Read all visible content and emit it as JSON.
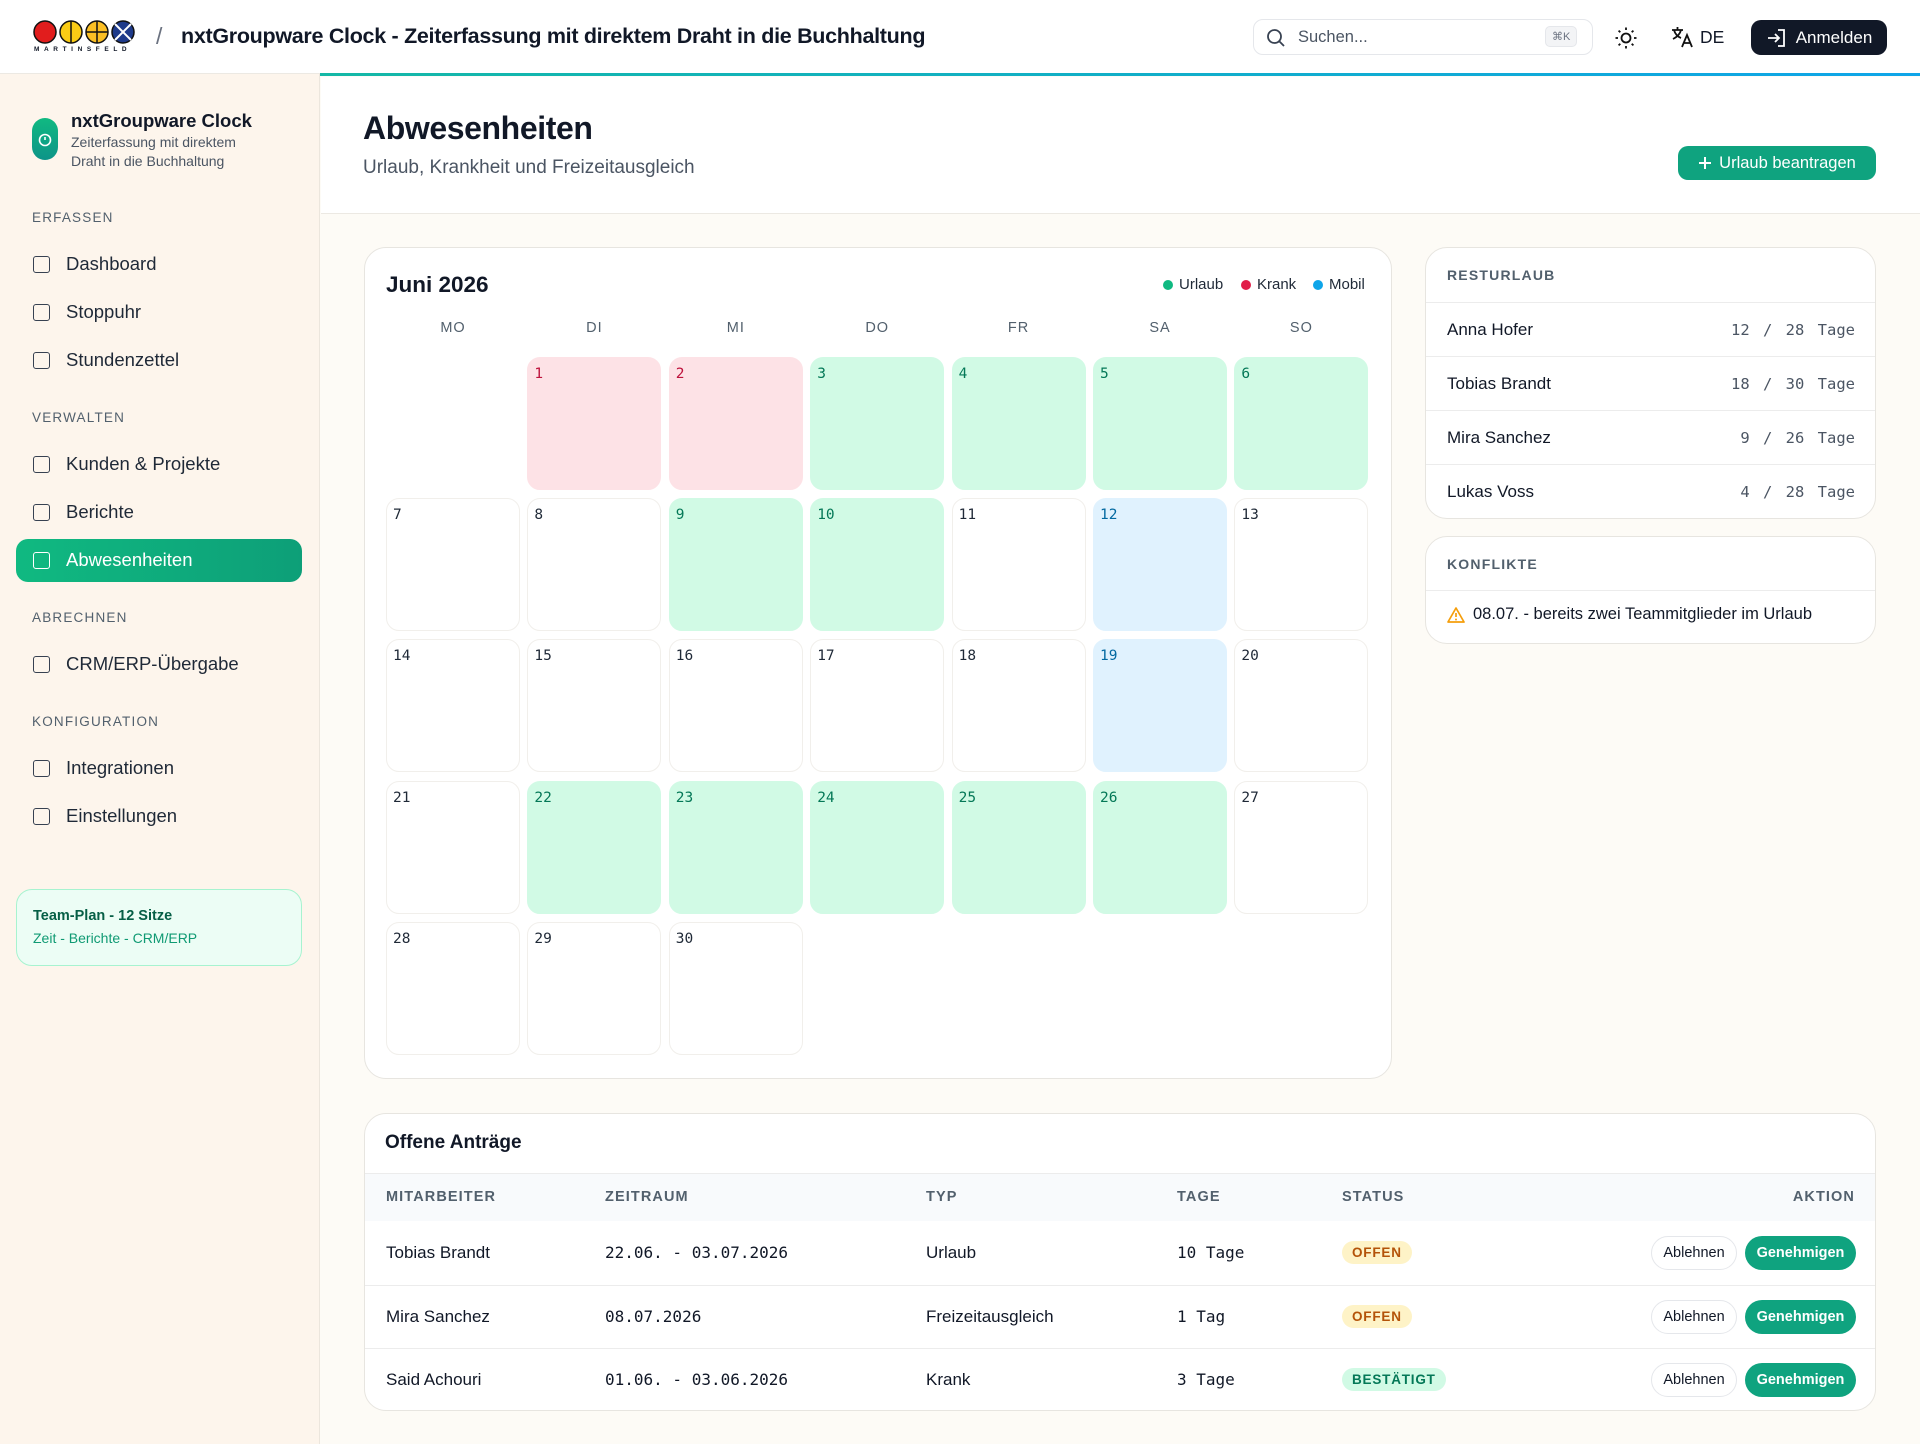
{
  "header": {
    "logo_text": "MARTINSFELD",
    "separator": "/",
    "title": "nxtGroupware Clock - Zeiterfassung mit direktem Draht in die Buchhaltung",
    "search_placeholder": "Suchen...",
    "search_shortcut": "⌘K",
    "language": "DE",
    "login": "Anmelden"
  },
  "sidebar": {
    "app_name": "nxtGroupware Clock",
    "app_subtitle": "Zeiterfassung mit direktem Draht in die Buchhaltung",
    "sections": [
      {
        "title": "ERFASSEN",
        "items": [
          {
            "label": "Dashboard"
          },
          {
            "label": "Stoppuhr"
          },
          {
            "label": "Stundenzettel"
          }
        ]
      },
      {
        "title": "VERWALTEN",
        "items": [
          {
            "label": "Kunden & Projekte"
          },
          {
            "label": "Berichte"
          },
          {
            "label": "Abwesenheiten",
            "active": true
          }
        ]
      },
      {
        "title": "ABRECHNEN",
        "items": [
          {
            "label": "CRM/ERP-Übergabe"
          }
        ]
      },
      {
        "title": "KONFIGURATION",
        "items": [
          {
            "label": "Integrationen"
          },
          {
            "label": "Einstellungen"
          }
        ]
      }
    ],
    "plan": {
      "title": "Team-Plan - 12 Sitze",
      "features": "Zeit - Berichte - CRM/ERP"
    }
  },
  "page": {
    "title": "Abwesenheiten",
    "subtitle": "Urlaub, Krankheit und Freizeitausgleich",
    "action": "Urlaub beantragen"
  },
  "calendar": {
    "month": "Juni 2026",
    "legend": [
      {
        "label": "Urlaub",
        "color": "#10b981",
        "cell_color": "#d1fae5",
        "text_color": "#047857"
      },
      {
        "label": "Krank",
        "color": "#e11d48",
        "cell_color": "#fde2e6",
        "text_color": "#be123c"
      },
      {
        "label": "Mobil",
        "color": "#0ea5e9",
        "cell_color": "#e0f2fe",
        "text_color": "#0369a1"
      }
    ],
    "weekdays": [
      "MO",
      "DI",
      "MI",
      "DO",
      "FR",
      "SA",
      "SO"
    ],
    "days": [
      {
        "label": "1",
        "type": "Krank"
      },
      {
        "label": "2",
        "type": "Krank"
      },
      {
        "label": "3",
        "type": "Urlaub"
      },
      {
        "label": "4",
        "type": "Urlaub"
      },
      {
        "label": "5",
        "type": "Urlaub"
      },
      {
        "label": "6",
        "type": "Urlaub"
      },
      {
        "label": "7",
        "type": null
      },
      {
        "label": "8",
        "type": null
      },
      {
        "label": "9",
        "type": "Urlaub"
      },
      {
        "label": "10",
        "type": "Urlaub"
      },
      {
        "label": "11",
        "type": null
      },
      {
        "label": "12",
        "type": "Mobil"
      },
      {
        "label": "13",
        "type": null
      },
      {
        "label": "14",
        "type": null
      },
      {
        "label": "15",
        "type": null
      },
      {
        "label": "16",
        "type": null
      },
      {
        "label": "17",
        "type": null
      },
      {
        "label": "18",
        "type": null
      },
      {
        "label": "19",
        "type": "Mobil"
      },
      {
        "label": "20",
        "type": null
      },
      {
        "label": "21",
        "type": null
      },
      {
        "label": "22",
        "type": "Urlaub"
      },
      {
        "label": "23",
        "type": "Urlaub"
      },
      {
        "label": "24",
        "type": "Urlaub"
      },
      {
        "label": "25",
        "type": "Urlaub"
      },
      {
        "label": "26",
        "type": "Urlaub"
      },
      {
        "label": "27",
        "type": null
      },
      {
        "label": "28",
        "type": null
      },
      {
        "label": "29",
        "type": null
      },
      {
        "label": "30",
        "type": null
      }
    ]
  },
  "vacation": {
    "title": "RESTURLAUB",
    "rows": [
      {
        "name": "Anna Hofer",
        "value": "12 / 28 Tage"
      },
      {
        "name": "Tobias Brandt",
        "value": "18 / 30 Tage"
      },
      {
        "name": "Mira Sanchez",
        "value": "9 / 26 Tage"
      },
      {
        "name": "Lukas Voss",
        "value": "4 / 28 Tage"
      }
    ]
  },
  "conflicts": {
    "title": "KONFLIKTE",
    "items": [
      "08.07. - bereits zwei Teammitglieder im Urlaub"
    ]
  },
  "requests": {
    "title": "Offene Anträge",
    "columns": [
      "MITARBEITER",
      "ZEITRAUM",
      "TYP",
      "TAGE",
      "STATUS",
      "AKTION"
    ],
    "rows": [
      {
        "employee": "Tobias Brandt",
        "period": "22.06. - 03.07.2026",
        "type": "Urlaub",
        "days": "10 Tage",
        "status": "OFFEN",
        "status_bg": "#fef3c7",
        "status_color": "#b45309"
      },
      {
        "employee": "Mira Sanchez",
        "period": "08.07.2026",
        "type": "Freizeitausgleich",
        "days": "1 Tag",
        "status": "OFFEN",
        "status_bg": "#fef3c7",
        "status_color": "#b45309"
      },
      {
        "employee": "Said Achouri",
        "period": "01.06. - 03.06.2026",
        "type": "Krank",
        "days": "3 Tage",
        "status": "BESTÄTIGT",
        "status_bg": "#d1fae5",
        "status_color": "#047857"
      }
    ],
    "actions": [
      "Ablehnen",
      "Genehmigen"
    ]
  }
}
